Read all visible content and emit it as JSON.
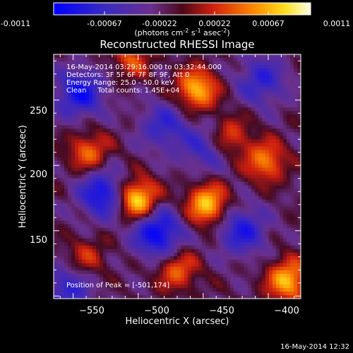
{
  "colorbar": {
    "ticks": [
      "-0.0011",
      "-0.00067",
      "-0.00022",
      "0.00022",
      "0.00067",
      "0.0011"
    ],
    "unit_base": "(photons cm",
    "unit_exp1": "-2",
    "unit_mid": " s",
    "unit_exp2": "-1",
    "unit_end": " asec",
    "unit_exp3": "-2",
    "unit_close": ")"
  },
  "chart_data": {
    "type": "heatmap",
    "title": "Reconstructed RHESSI Image",
    "xlabel": "Heliocentric X (arcsec)",
    "ylabel": "Heliocentric Y (arcsec)",
    "xlim": [
      -565,
      -375
    ],
    "ylim": [
      98,
      285
    ],
    "x_ticks": [
      -550,
      -500,
      -450,
      -400
    ],
    "y_ticks": [
      150,
      200,
      250
    ],
    "x_tick_labels": [
      "−550",
      "−500",
      "−450",
      "−400"
    ],
    "y_tick_labels": [
      "150",
      "200",
      "250"
    ],
    "colormap": "blue-purple-red-yellow-white",
    "value_range": [
      -0.0011,
      0.0011
    ],
    "annotations": [
      "16-May-2014 03:29:16.000 to 03:32:44.000",
      "Detectors: 3F 5F 6F 7F 8F 9F, Att 0",
      "Energy Range: 25.0 - 50.0 keV",
      "Clean     Total counts: 1.45E+04"
    ],
    "peak_label": "Position of Peak = [-501,174]",
    "peak": {
      "x": -501,
      "y": 174
    },
    "sources": [
      {
        "x": -501,
        "y": 174,
        "value": 0.0011
      },
      {
        "x": -447,
        "y": 170,
        "value": 0.00095
      },
      {
        "x": -455,
        "y": 258,
        "value": 0.0009
      },
      {
        "x": -385,
        "y": 112,
        "value": 0.0009
      },
      {
        "x": -402,
        "y": 203,
        "value": 0.0007
      },
      {
        "x": -538,
        "y": 210,
        "value": 0.00062
      },
      {
        "x": -470,
        "y": 120,
        "value": 0.0006
      },
      {
        "x": -505,
        "y": 282,
        "value": 0.0005
      },
      {
        "x": -540,
        "y": 130,
        "value": 0.0004
      },
      {
        "x": -430,
        "y": 222,
        "value": 0.00055
      },
      {
        "x": -527,
        "y": 178,
        "value": -0.00085
      },
      {
        "x": -485,
        "y": 148,
        "value": -0.00095
      },
      {
        "x": -545,
        "y": 255,
        "value": -0.0008
      },
      {
        "x": -420,
        "y": 150,
        "value": -0.0007
      },
      {
        "x": -405,
        "y": 265,
        "value": -0.0006
      },
      {
        "x": -448,
        "y": 213,
        "value": -0.0005
      },
      {
        "x": -480,
        "y": 230,
        "value": -0.00055
      },
      {
        "x": -555,
        "y": 105,
        "value": -0.0006
      }
    ]
  },
  "footer_timestamp": "16-May-2014 12:32"
}
